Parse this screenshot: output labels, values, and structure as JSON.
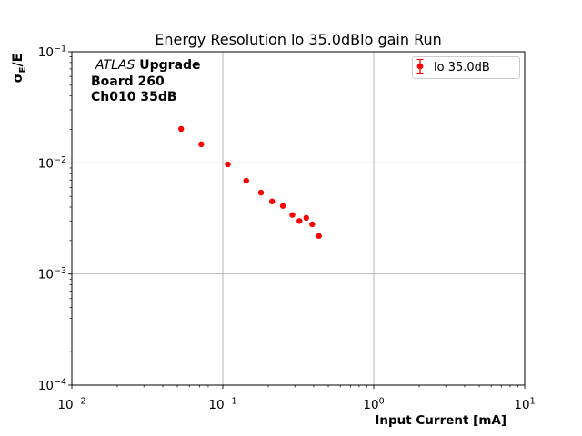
{
  "chart_data": {
    "type": "scatter",
    "title": "Energy Resolution lo 35.0dBlo gain Run",
    "xlabel": "Input Current [mA]",
    "ylabel": "σ_E/E",
    "ylabel_parts": {
      "sigma": "σ",
      "sub": "E",
      "rest": "/E"
    },
    "x_scale": "log",
    "y_scale": "log",
    "xlim": [
      0.01,
      10
    ],
    "ylim": [
      0.0001,
      0.1
    ],
    "x_tick_exponents": [
      -2,
      -1,
      0,
      1
    ],
    "y_tick_exponents": [
      -1,
      -2,
      -3,
      -4
    ],
    "grid": true,
    "legend_position": "upper right",
    "series": [
      {
        "name": "lo 35.0dB",
        "color": "#ff0000",
        "marker": "circle-with-errorbar",
        "x": [
          0.053,
          0.072,
          0.108,
          0.143,
          0.179,
          0.212,
          0.25,
          0.289,
          0.322,
          0.357,
          0.391,
          0.433
        ],
        "y": [
          0.0202,
          0.0147,
          0.0097,
          0.0069,
          0.0054,
          0.0045,
          0.0041,
          0.0034,
          0.003,
          0.0032,
          0.0028,
          0.0022
        ],
        "yerr": [
          0.0009,
          0.0005,
          0.0003,
          0.0002,
          0.00015,
          0.00012,
          0.0001,
          0.0001,
          9e-05,
          9e-05,
          8e-05,
          8e-05
        ]
      }
    ],
    "annotations": [
      "ATLAS Upgrade",
      "Board 260",
      "Ch010 35dB"
    ]
  },
  "legend": {
    "label": "lo 35.0dB"
  },
  "annotation": {
    "line1_italic": "ATLAS",
    "line1_bold": " Upgrade",
    "line2": "Board 260",
    "line3": "Ch010 35dB"
  },
  "colors": {
    "marker": "#ff0000",
    "grid": "#b0b0b0",
    "spine": "#000000",
    "tick": "#000000",
    "legend_border": "#cccccc",
    "background": "#ffffff"
  }
}
